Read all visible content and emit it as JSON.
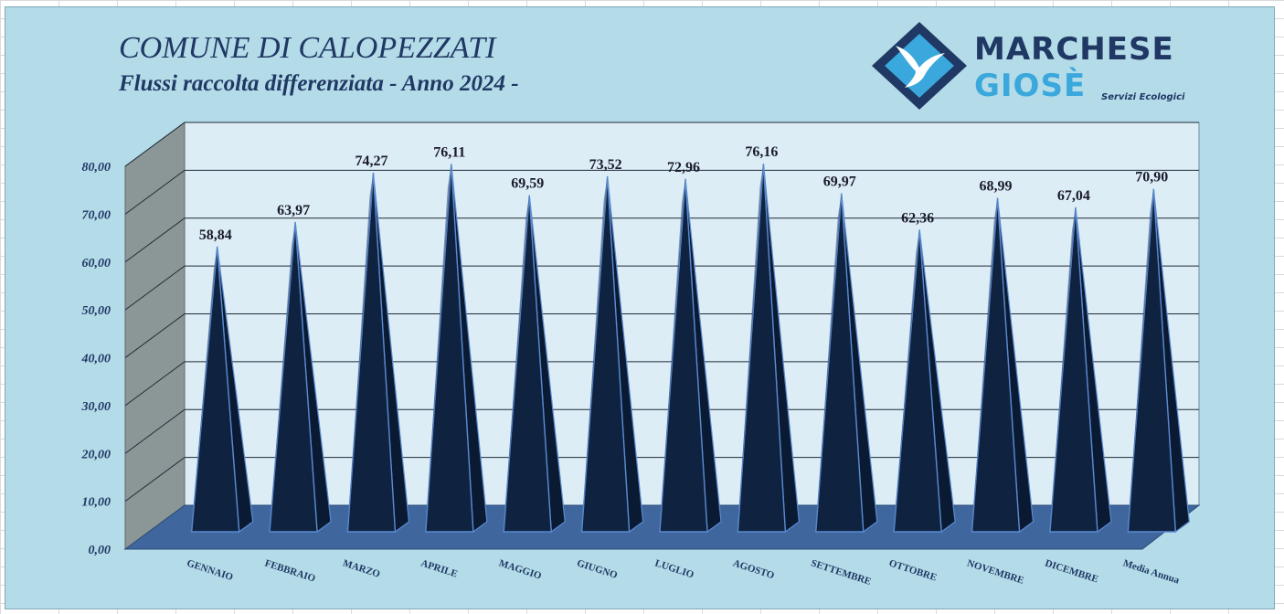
{
  "header": {
    "title": "COMUNE DI CALOPEZZATI",
    "subtitle": "Flussi raccolta differenziata - Anno 2024 -"
  },
  "logo": {
    "line1": "MARCHESE",
    "line2": "GIOSÈ",
    "tagline": "Servizi Ecologici",
    "colors": {
      "dark": "#1f3864",
      "light": "#3aa8dc"
    }
  },
  "chart_data": {
    "type": "bar",
    "shape": "3d-pyramid",
    "title": "COMUNE DI CALOPEZZATI",
    "subtitle": "Flussi raccolta differenziata - Anno 2024 -",
    "categories": [
      "GENNAIO",
      "FEBBRAIO",
      "MARZO",
      "APRILE",
      "MAGGIO",
      "GIUGNO",
      "LUGLIO",
      "AGOSTO",
      "SETTEMBRE",
      "OTTOBRE",
      "NOVEMBRE",
      "DICEMBRE",
      "Media Annua"
    ],
    "values": [
      58.84,
      63.97,
      74.27,
      76.11,
      69.59,
      73.52,
      72.96,
      76.16,
      69.97,
      62.36,
      68.99,
      67.04,
      70.9
    ],
    "value_labels": [
      "58,84",
      "63,97",
      "74,27",
      "76,11",
      "69,59",
      "73,52",
      "72,96",
      "76,16",
      "69,97",
      "62,36",
      "68,99",
      "67,04",
      "70,90"
    ],
    "yticks": [
      "0,00",
      "10,00",
      "20,00",
      "30,00",
      "40,00",
      "50,00",
      "60,00",
      "70,00",
      "80,00"
    ],
    "ylim": [
      0,
      80
    ],
    "grid": true,
    "xlabel": "",
    "ylabel": "",
    "colors": {
      "bar_dark": "#0f2341",
      "bar_light": "#2e4f7e",
      "bar_edge": "#5b8ad0",
      "floor": "#3f679e",
      "back_wall": "#dcedf5",
      "side_wall": "#8b9697",
      "gridline": "#1f2a3a"
    }
  }
}
